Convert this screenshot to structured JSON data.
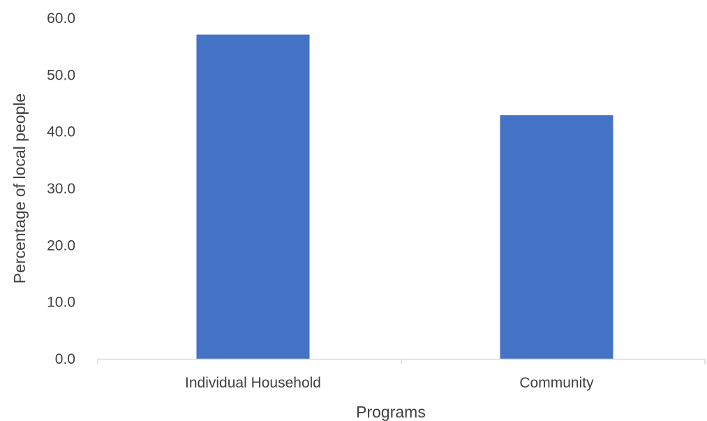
{
  "chart_data": {
    "type": "bar",
    "title": "",
    "xlabel": "Programs",
    "ylabel": "Percentage  of local people",
    "categories": [
      "Individual Household",
      "Community"
    ],
    "values": [
      57.1,
      42.9
    ],
    "ylim": [
      0,
      60
    ],
    "yticks": [
      0,
      10,
      20,
      30,
      40,
      50,
      60
    ],
    "ytick_labels": [
      "0.0",
      "10.0",
      "20.0",
      "30.0",
      "40.0",
      "50.0",
      "60.0"
    ],
    "bar_color": "#4472C4",
    "grid": false,
    "legend": "none"
  }
}
